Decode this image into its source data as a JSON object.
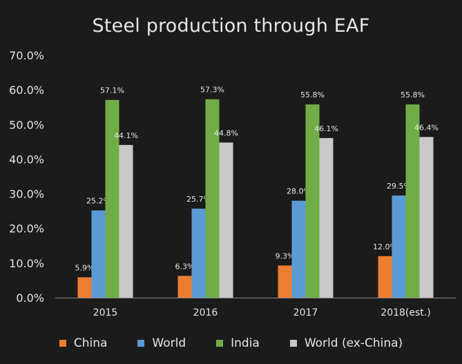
{
  "chart_data": {
    "type": "bar",
    "title": "Steel production through EAF",
    "categories": [
      "2015",
      "2016",
      "2017",
      "2018(est.)"
    ],
    "series": [
      {
        "name": "China",
        "color": "#ed7d31",
        "values": [
          5.9,
          6.3,
          9.3,
          12.0
        ],
        "labels": [
          "5.9%",
          "6.3%",
          "9.3%",
          "12.0%"
        ]
      },
      {
        "name": "World",
        "color": "#5b9bd5",
        "values": [
          25.2,
          25.7,
          28.0,
          29.5
        ],
        "labels": [
          "25.2%",
          "25.7%",
          "28.0%",
          "29.5%"
        ]
      },
      {
        "name": "India",
        "color": "#70ad47",
        "values": [
          57.1,
          57.3,
          55.8,
          55.8
        ],
        "labels": [
          "57.1%",
          "57.3%",
          "55.8%",
          "55.8%"
        ]
      },
      {
        "name": "World (ex-China)",
        "color": "#c9c9c9",
        "values": [
          44.1,
          44.8,
          46.1,
          46.4
        ],
        "labels": [
          "44.1%",
          "44.8%",
          "46.1%",
          "46.4%"
        ]
      }
    ],
    "ylim": [
      0,
      70
    ],
    "yticks": [
      "0.0%",
      "10.0%",
      "20.0%",
      "30.0%",
      "40.0%",
      "50.0%",
      "60.0%",
      "70.0%"
    ],
    "xlabel": "",
    "ylabel": "",
    "legend": "bottom",
    "grid": false
  }
}
